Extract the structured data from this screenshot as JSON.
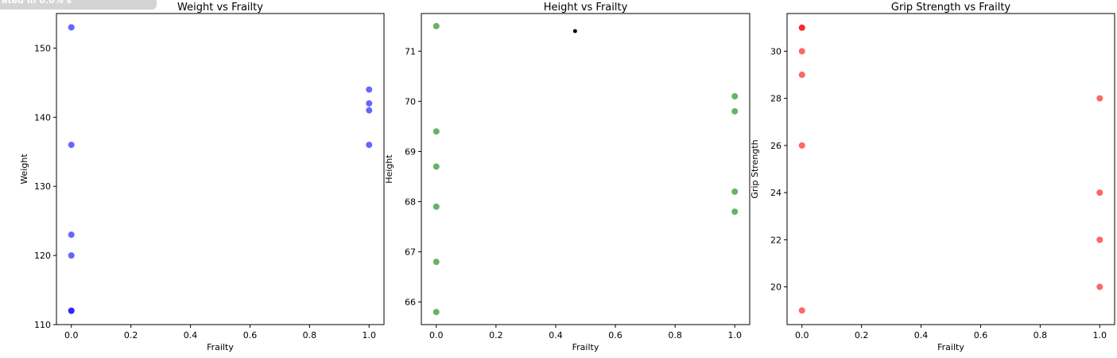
{
  "badge": {
    "text": "ated in 0.0% s"
  },
  "chart_data": [
    {
      "type": "scatter",
      "title": "Weight vs Frailty",
      "xlabel": "Frailty",
      "ylabel": "Weight",
      "xlim": [
        -0.05,
        1.05
      ],
      "ylim": [
        110,
        155
      ],
      "xticks": [
        0.0,
        0.2,
        0.4,
        0.6,
        0.8,
        1.0
      ],
      "xticklabels": [
        "0.0",
        "0.2",
        "0.4",
        "0.6",
        "0.8",
        "1.0"
      ],
      "yticks": [
        110,
        120,
        130,
        140,
        150
      ],
      "yticklabels": [
        "110",
        "120",
        "130",
        "140",
        "150"
      ],
      "color": "#0000ff",
      "points": [
        {
          "x": 0,
          "y": 153
        },
        {
          "x": 0,
          "y": 136
        },
        {
          "x": 0,
          "y": 123
        },
        {
          "x": 0,
          "y": 120
        },
        {
          "x": 0,
          "y": 112
        },
        {
          "x": 0,
          "y": 112
        },
        {
          "x": 1,
          "y": 144
        },
        {
          "x": 1,
          "y": 142
        },
        {
          "x": 1,
          "y": 141
        },
        {
          "x": 1,
          "y": 136
        }
      ],
      "grid": false
    },
    {
      "type": "scatter",
      "title": "Height vs Frailty",
      "xlabel": "Frailty",
      "ylabel": "Height",
      "xlim": [
        -0.05,
        1.05
      ],
      "ylim": [
        65.55,
        71.75
      ],
      "xticks": [
        0.0,
        0.2,
        0.4,
        0.6,
        0.8,
        1.0
      ],
      "xticklabels": [
        "0.0",
        "0.2",
        "0.4",
        "0.6",
        "0.8",
        "1.0"
      ],
      "yticks": [
        66,
        67,
        68,
        69,
        70,
        71
      ],
      "yticklabels": [
        "66",
        "67",
        "68",
        "69",
        "70",
        "71"
      ],
      "color": "#008000",
      "points": [
        {
          "x": 0,
          "y": 71.5
        },
        {
          "x": 0,
          "y": 69.4
        },
        {
          "x": 0,
          "y": 68.7
        },
        {
          "x": 0,
          "y": 67.9
        },
        {
          "x": 0,
          "y": 66.8
        },
        {
          "x": 0,
          "y": 65.8
        },
        {
          "x": 1,
          "y": 70.1
        },
        {
          "x": 1,
          "y": 69.8
        },
        {
          "x": 1,
          "y": 68.2
        },
        {
          "x": 1,
          "y": 67.8
        }
      ],
      "marker_point": {
        "x": 0.465,
        "y": 71.4,
        "color": "#000000"
      },
      "grid": false
    },
    {
      "type": "scatter",
      "title": "Grip Strength vs Frailty",
      "xlabel": "Frailty",
      "ylabel": "Grip Strength",
      "xlim": [
        -0.05,
        1.05
      ],
      "ylim": [
        18.4,
        31.6
      ],
      "xticks": [
        0.0,
        0.2,
        0.4,
        0.6,
        0.8,
        1.0
      ],
      "xticklabels": [
        "0.0",
        "0.2",
        "0.4",
        "0.6",
        "0.8",
        "1.0"
      ],
      "yticks": [
        20,
        22,
        24,
        26,
        28,
        30
      ],
      "yticklabels": [
        "20",
        "22",
        "24",
        "26",
        "28",
        "30"
      ],
      "color": "#ff0000",
      "points": [
        {
          "x": 0,
          "y": 31
        },
        {
          "x": 0,
          "y": 31
        },
        {
          "x": 0,
          "y": 30
        },
        {
          "x": 0,
          "y": 29
        },
        {
          "x": 0,
          "y": 26
        },
        {
          "x": 0,
          "y": 19
        },
        {
          "x": 1,
          "y": 28
        },
        {
          "x": 1,
          "y": 24
        },
        {
          "x": 1,
          "y": 22
        },
        {
          "x": 1,
          "y": 20
        }
      ],
      "grid": false
    }
  ]
}
